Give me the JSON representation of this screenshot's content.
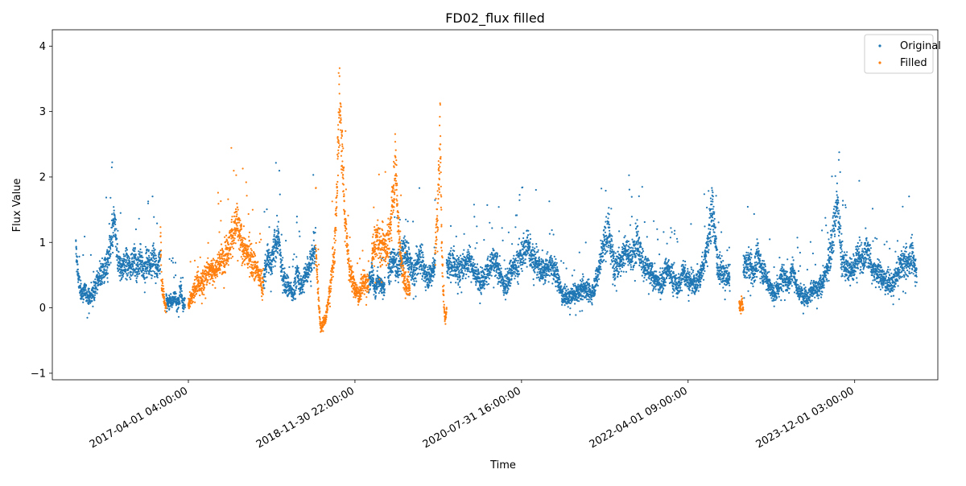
{
  "chart_data": {
    "type": "scatter",
    "title": "FD02_flux filled",
    "xlabel": "Time",
    "ylabel": "Flux Value",
    "xlim": [
      "2015-11-21",
      "2024-09-30"
    ],
    "ylim": [
      -1.1,
      4.25
    ],
    "x_ticks": [
      "2017-04-01 04:00:00",
      "2018-11-30 22:00:00",
      "2020-07-31 16:00:00",
      "2022-04-01 09:00:00",
      "2023-12-01 03:00:00"
    ],
    "y_ticks": [
      -1,
      0,
      1,
      2,
      3,
      4
    ],
    "grid": false,
    "legend_position": "upper right",
    "series": [
      {
        "name": "Original",
        "color": "#1f77b4",
        "marker": "point",
        "segments": [
          {
            "start": "2016-02-15",
            "end": "2016-09-01",
            "levels": [
              0.9,
              0.35,
              0.2,
              0.25,
              0.15,
              0.2,
              0.3,
              0.45,
              0.5,
              0.6,
              0.7,
              0.95,
              1.35,
              0.75,
              0.6,
              0.65,
              0.7,
              0.6
            ]
          },
          {
            "start": "2016-09-01",
            "end": "2016-12-20",
            "levels": [
              0.65,
              0.75,
              0.6,
              0.8,
              0.55,
              0.7,
              0.65,
              0.75,
              0.6,
              0.8
            ]
          },
          {
            "start": "2017-01-10",
            "end": "2017-03-20",
            "levels": [
              0.1,
              0.05,
              0.15,
              0.08,
              0.2,
              0.05,
              0.12,
              0.3,
              0.05,
              0.08
            ]
          },
          {
            "start": "2018-01-01",
            "end": "2018-07-10",
            "levels": [
              0.4,
              0.8,
              0.6,
              0.95,
              1.1,
              0.5,
              0.4,
              0.3,
              0.2,
              0.55,
              0.3,
              0.45,
              0.6,
              0.75,
              0.9
            ]
          },
          {
            "start": "2019-01-20",
            "end": "2019-03-20",
            "levels": [
              0.35,
              0.55,
              0.25,
              0.45,
              0.35,
              0.3
            ]
          },
          {
            "start": "2019-04-01",
            "end": "2019-09-20",
            "levels": [
              0.5,
              0.75,
              0.6,
              0.9,
              0.7,
              0.5,
              0.8,
              0.55,
              0.45,
              0.7
            ]
          },
          {
            "start": "2019-11-01",
            "end": "2022-09-01",
            "levels": [
              0.6,
              0.7,
              0.55,
              0.65,
              0.75,
              0.5,
              0.4,
              0.55,
              0.7,
              0.6,
              0.3,
              0.55,
              0.65,
              0.8,
              0.95,
              0.75,
              0.6,
              0.55,
              0.7,
              0.5,
              0.2,
              0.15,
              0.2,
              0.25,
              0.3,
              0.2,
              0.45,
              0.9,
              1.2,
              0.6,
              0.7,
              0.9,
              0.75,
              1.05,
              0.65,
              0.55,
              0.45,
              0.35,
              0.6,
              0.5,
              0.3,
              0.55,
              0.4,
              0.35,
              0.5,
              0.9,
              1.5,
              0.6,
              0.5,
              0.45
            ]
          },
          {
            "start": "2022-10-20",
            "end": "2024-07-15",
            "levels": [
              0.6,
              0.7,
              0.5,
              0.8,
              0.55,
              0.4,
              0.2,
              0.3,
              0.5,
              0.35,
              0.6,
              0.25,
              0.2,
              0.15,
              0.3,
              0.25,
              0.4,
              0.6,
              1.1,
              1.6,
              0.7,
              0.6,
              0.55,
              0.8,
              0.7,
              0.9,
              0.6,
              0.55,
              0.45,
              0.4,
              0.35,
              0.5,
              0.7,
              0.65,
              0.8,
              0.55
            ]
          }
        ]
      },
      {
        "name": "Filled",
        "color": "#ff7f0e",
        "marker": "point",
        "segments": [
          {
            "start": "2016-12-20",
            "end": "2017-01-10",
            "levels": [
              1.3,
              0.45,
              0.25,
              0.15,
              0.05,
              0.0
            ]
          },
          {
            "start": "2017-04-01",
            "end": "2017-12-31",
            "levels": [
              0.05,
              0.2,
              0.4,
              0.35,
              0.5,
              0.6,
              0.55,
              0.7,
              0.75,
              0.9,
              1.1,
              1.3,
              1.0,
              0.85,
              0.8,
              0.65,
              0.5,
              0.35
            ]
          },
          {
            "start": "2018-07-10",
            "end": "2019-01-20",
            "levels": [
              0.9,
              -0.3,
              -0.2,
              0.3,
              0.9,
              3.2,
              1.5,
              0.6,
              0.3,
              0.2,
              0.4,
              0.35
            ]
          },
          {
            "start": "2019-02-01",
            "end": "2019-06-20",
            "levels": [
              0.8,
              0.95,
              1.1,
              0.85,
              1.0,
              0.9,
              1.05,
              1.7,
              2.2,
              1.3,
              0.7,
              0.4,
              0.35,
              0.3
            ]
          },
          {
            "start": "2019-09-20",
            "end": "2019-11-01",
            "levels": [
              0.9,
              1.2,
              1.7,
              2.8,
              1.0,
              0.2,
              -0.2,
              0.0
            ]
          },
          {
            "start": "2022-10-05",
            "end": "2022-10-20",
            "levels": [
              0.05,
              0.0,
              0.1,
              -0.02
            ]
          }
        ]
      }
    ]
  }
}
